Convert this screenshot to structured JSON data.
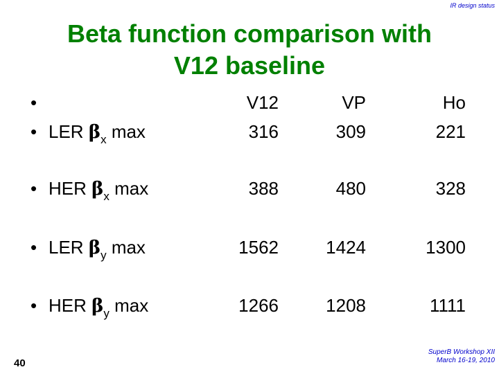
{
  "header_note": "IR design status",
  "title": {
    "line1": "Beta function comparison with",
    "line2": "V12 baseline"
  },
  "bullet": "•",
  "table": {
    "columns": [
      "V12",
      "VP",
      "Ho"
    ],
    "rows": [
      {
        "prefix": "LER",
        "symbol": "β",
        "subscript": "x",
        "suffix": "max",
        "values": [
          "316",
          "309",
          "221"
        ]
      },
      {
        "prefix": "HER",
        "symbol": "β",
        "subscript": "x",
        "suffix": "max",
        "values": [
          "388",
          "480",
          "328"
        ]
      },
      {
        "prefix": "LER",
        "symbol": "β",
        "subscript": "y",
        "suffix": "max",
        "values": [
          "1562",
          "1424",
          "1300"
        ]
      },
      {
        "prefix": "HER",
        "symbol": "β",
        "subscript": "y",
        "suffix": "max",
        "values": [
          "1266",
          "1208",
          "1111"
        ]
      }
    ]
  },
  "page_number": "40",
  "footer": {
    "line1": "SuperB Workshop XII",
    "line2": "March 16-19, 2010"
  }
}
